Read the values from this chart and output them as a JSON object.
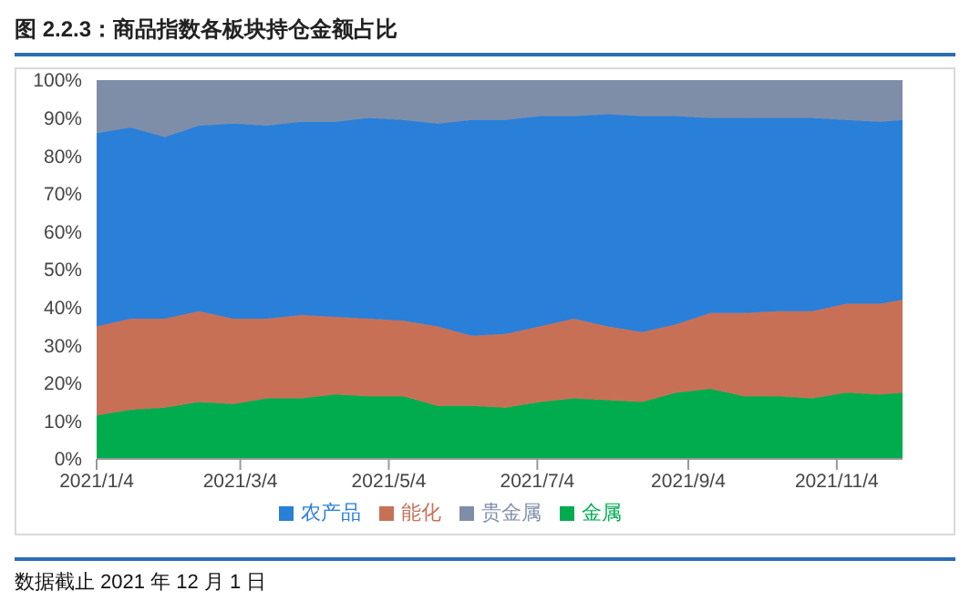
{
  "chart_data": {
    "type": "area",
    "title": "图 2.2.3：商品指数各板块持仓金额占比",
    "stacked": true,
    "x": [
      "2021-01-04",
      "2021-01-18",
      "2021-02-01",
      "2021-02-15",
      "2021-03-01",
      "2021-03-15",
      "2021-03-29",
      "2021-04-12",
      "2021-04-26",
      "2021-05-10",
      "2021-05-24",
      "2021-06-07",
      "2021-06-21",
      "2021-07-05",
      "2021-07-19",
      "2021-08-02",
      "2021-08-16",
      "2021-08-30",
      "2021-09-13",
      "2021-09-27",
      "2021-10-11",
      "2021-10-25",
      "2021-11-08",
      "2021-11-22",
      "2021-12-01"
    ],
    "series": [
      {
        "name": "金属",
        "color": "#00ac4e",
        "values": [
          11.5,
          13,
          13.5,
          15,
          14.5,
          16,
          16,
          17,
          16.5,
          16.5,
          14,
          14,
          13.5,
          15,
          16,
          15.5,
          15,
          17.5,
          18.5,
          16.5,
          16.5,
          16,
          17.5,
          17,
          17.5
        ]
      },
      {
        "name": "能化",
        "color": "#c87056",
        "values": [
          23.5,
          24,
          23.5,
          24,
          22.5,
          21,
          22,
          20.5,
          20.5,
          20,
          21,
          18.5,
          19.5,
          20,
          21,
          19.5,
          18.5,
          18,
          20,
          22,
          22.5,
          23,
          23.5,
          24,
          24.5
        ]
      },
      {
        "name": "农产品",
        "color": "#2a7fd8",
        "values": [
          51,
          50.5,
          48,
          49,
          51.5,
          51,
          51,
          51.5,
          53,
          53,
          53.5,
          57,
          56.5,
          55.5,
          53.5,
          56,
          57,
          55,
          51.5,
          51.5,
          51,
          51,
          48.5,
          48,
          47.5
        ]
      },
      {
        "name": "贵金属",
        "color": "#7f8ea8",
        "values": [
          14,
          12.5,
          15,
          12,
          11.5,
          12,
          11,
          11,
          10,
          10.5,
          11.5,
          10.5,
          10.5,
          9.5,
          9.5,
          9,
          9.5,
          9.5,
          10,
          10,
          10,
          10,
          10.5,
          11,
          10.5
        ]
      }
    ],
    "xlim": [
      "2021-01-04",
      "2021-12-01"
    ],
    "xticks": [
      {
        "value": "2021-01-04",
        "label": "2021/1/4"
      },
      {
        "value": "2021-03-04",
        "label": "2021/3/4"
      },
      {
        "value": "2021-05-04",
        "label": "2021/5/4"
      },
      {
        "value": "2021-07-04",
        "label": "2021/7/4"
      },
      {
        "value": "2021-09-04",
        "label": "2021/9/4"
      },
      {
        "value": "2021-11-04",
        "label": "2021/11/4"
      }
    ],
    "ylim": [
      0,
      100
    ],
    "yticks": [
      {
        "value": 0,
        "label": "0%"
      },
      {
        "value": 10,
        "label": "10%"
      },
      {
        "value": 20,
        "label": "20%"
      },
      {
        "value": 30,
        "label": "30%"
      },
      {
        "value": 40,
        "label": "40%"
      },
      {
        "value": 50,
        "label": "50%"
      },
      {
        "value": 60,
        "label": "60%"
      },
      {
        "value": 70,
        "label": "70%"
      },
      {
        "value": 80,
        "label": "80%"
      },
      {
        "value": 90,
        "label": "90%"
      },
      {
        "value": 100,
        "label": "100%"
      }
    ],
    "grid": false,
    "legend": "bottom",
    "annotations": [
      "数据截止 2021 年 12 月 1 日"
    ]
  }
}
